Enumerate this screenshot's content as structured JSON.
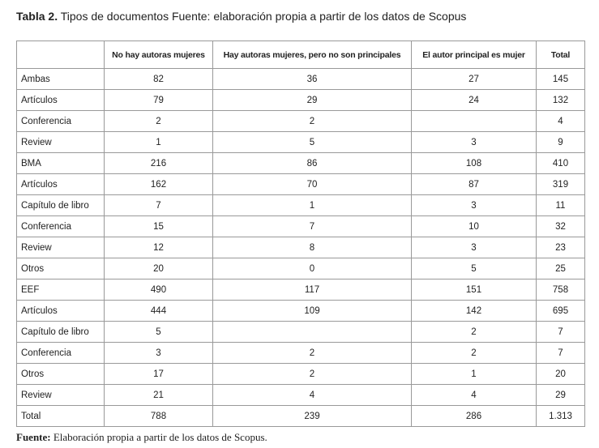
{
  "title": {
    "label": "Tabla 2.",
    "text": " Tipos de documentos Fuente: elaboración propia a partir de los datos de Scopus"
  },
  "table": {
    "header": [
      "",
      "No hay autoras mujeres",
      "Hay autoras mujeres, pero no son principales",
      "El autor principal es mujer",
      "Total"
    ],
    "rows": [
      [
        "Ambas",
        "82",
        "36",
        "27",
        "145"
      ],
      [
        "Artículos",
        "79",
        "29",
        "24",
        "132"
      ],
      [
        "Conferencia",
        "2",
        "2",
        null,
        "4"
      ],
      [
        "Review",
        "1",
        "5",
        "3",
        "9"
      ],
      [
        "BMA",
        "216",
        "86",
        "108",
        "410"
      ],
      [
        "Artículos",
        "162",
        "70",
        "87",
        "319"
      ],
      [
        "Capítulo de libro",
        "7",
        "1",
        "3",
        "11"
      ],
      [
        "Conferencia",
        "15",
        "7",
        "10",
        "32"
      ],
      [
        "Review",
        "12",
        "8",
        "3",
        "23"
      ],
      [
        "Otros",
        "20",
        "0",
        "5",
        "25"
      ],
      [
        "EEF",
        "490",
        "117",
        "151",
        "758"
      ],
      [
        "Artículos",
        "444",
        "109",
        "142",
        "695"
      ],
      [
        "Capítulo de libro",
        "5",
        null,
        "2",
        "7"
      ],
      [
        "Conferencia",
        "3",
        "2",
        "2",
        "7"
      ],
      [
        "Otros",
        "17",
        "2",
        "1",
        "20"
      ],
      [
        "Review",
        "21",
        "4",
        "4",
        "29"
      ],
      [
        "Total",
        "788",
        "239",
        "286",
        "1.313"
      ]
    ]
  },
  "footer": {
    "label": "Fuente:",
    "text": " Elaboración propia a partir de los datos de Scopus."
  }
}
